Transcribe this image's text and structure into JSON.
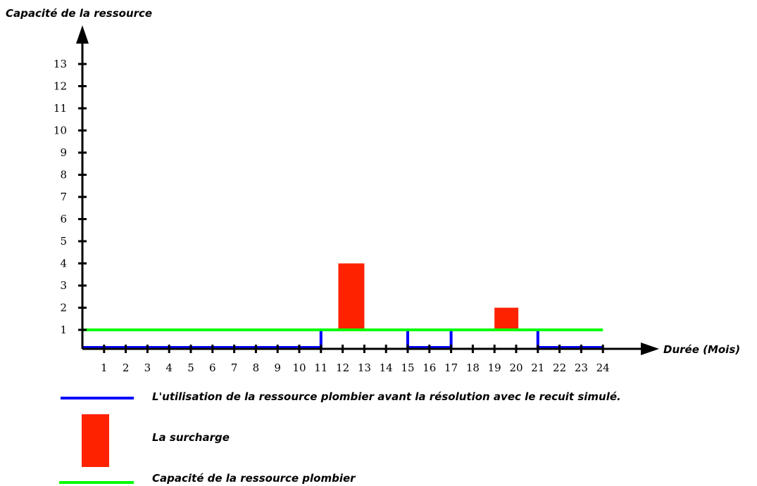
{
  "chart_data": {
    "type": "line",
    "ylabel": "Capacité de la ressource",
    "xlabel": "Durée (Mois)",
    "x_ticks": [
      1,
      2,
      3,
      4,
      5,
      6,
      7,
      8,
      9,
      10,
      11,
      12,
      13,
      14,
      15,
      16,
      17,
      18,
      19,
      20,
      21,
      22,
      23,
      24
    ],
    "y_ticks": [
      1,
      2,
      3,
      4,
      5,
      6,
      7,
      8,
      9,
      10,
      11,
      12,
      13
    ],
    "xlim": [
      0,
      24
    ],
    "ylim": [
      0,
      13
    ],
    "series": [
      {
        "name": "L'utilisation de la ressource plombier avant la résolution avec le recuit simulé.",
        "color": "#0000ff",
        "style": "step",
        "points": [
          [
            0,
            0
          ],
          [
            11,
            0
          ],
          [
            11,
            1
          ],
          [
            15,
            1
          ],
          [
            15,
            0
          ],
          [
            17,
            0
          ],
          [
            17,
            1
          ],
          [
            21,
            1
          ],
          [
            21,
            0
          ],
          [
            24,
            0
          ]
        ]
      },
      {
        "name": "Capacité de la ressource plombier",
        "color": "#00ff00",
        "style": "line",
        "points": [
          [
            0,
            1
          ],
          [
            24,
            1
          ]
        ]
      }
    ],
    "overload": {
      "name": "La surcharge",
      "color": "#ff2200",
      "bars": [
        {
          "x0": 11.8,
          "x1": 13.0,
          "y0": 1,
          "y1": 4
        },
        {
          "x0": 19.0,
          "x1": 20.1,
          "y0": 1,
          "y1": 2
        }
      ]
    }
  },
  "legend": {
    "blue_label": "L'utilisation de la ressource plombier avant la résolution avec le recuit simulé.",
    "red_label": "La surcharge",
    "green_label": "Capacité de la ressource plombier"
  }
}
